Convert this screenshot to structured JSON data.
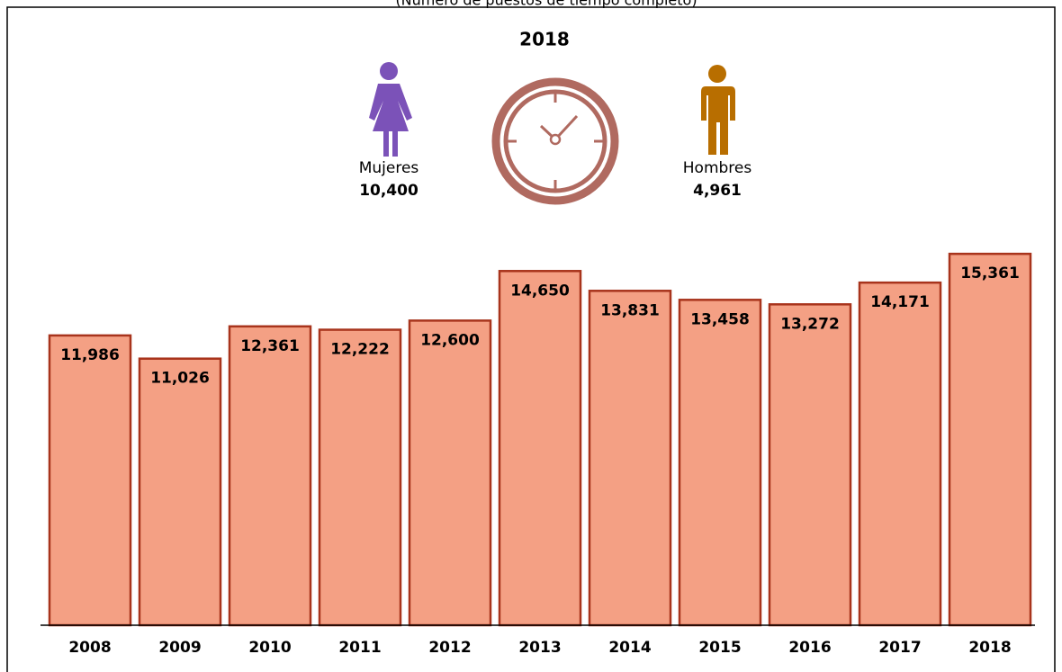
{
  "chart_data": {
    "type": "bar",
    "subtitle": "(Número de puestos de tiempo completo)",
    "summary": {
      "year": "2018",
      "groups": [
        {
          "name": "Mujeres",
          "value": 10400,
          "value_label": "10,400",
          "color": "#7b52b8"
        },
        {
          "name": "Hombres",
          "value": 4961,
          "value_label": "4,961",
          "color": "#b86e00"
        }
      ]
    },
    "categories": [
      "2008",
      "2009",
      "2010",
      "2011",
      "2012",
      "2013",
      "2014",
      "2015",
      "2016",
      "2017",
      "2018"
    ],
    "values": [
      11986,
      11026,
      12361,
      12222,
      12600,
      14650,
      13831,
      13458,
      13272,
      14171,
      15361
    ],
    "value_labels": [
      "11,986",
      "11,026",
      "12,361",
      "12,222",
      "12,600",
      "14,650",
      "13,831",
      "13,458",
      "13,272",
      "14,171",
      "15,361"
    ],
    "color": "#f4a084",
    "edge_color": "#a8341c",
    "ylim": [
      0,
      16000
    ],
    "grid": false
  }
}
